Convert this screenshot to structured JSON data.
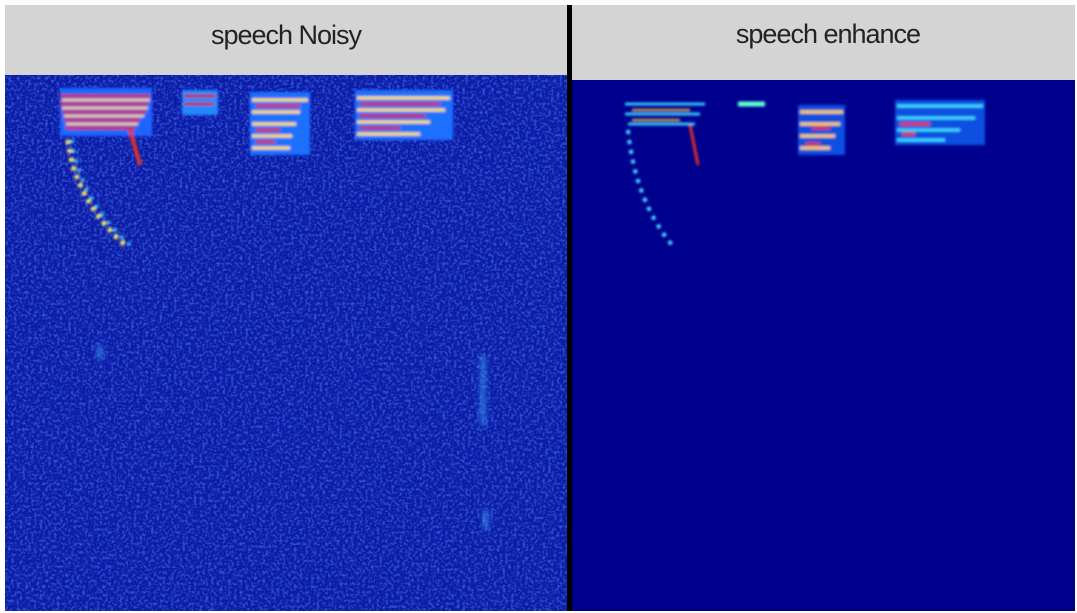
{
  "panels": [
    {
      "title": "speech Noisy"
    },
    {
      "title": "speech enhance"
    }
  ]
}
